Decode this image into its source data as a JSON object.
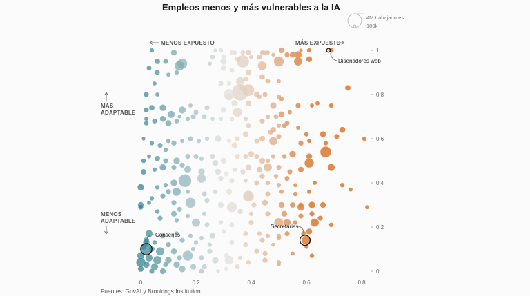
{
  "chart_data": {
    "type": "scatter",
    "title": "Empleos menos y más vulnerables a la IA",
    "x_axis": {
      "range": [
        0,
        0.8
      ],
      "ticks": [
        0,
        0.2,
        0.4,
        0.6,
        0.8
      ],
      "tick_labels": [
        "0",
        "0.2",
        "0.4",
        "0.6",
        "0.8"
      ]
    },
    "y_axis": {
      "range": [
        0,
        1
      ],
      "ticks": [
        0,
        0.2,
        0.4,
        0.6,
        0.8,
        1
      ],
      "tick_labels": [
        "0",
        "0.2",
        "0.4",
        "0.6",
        "0.8",
        "1"
      ]
    },
    "x_notes": {
      "left": "MENOS EXPUESTO",
      "right": "MÁS EXPUESTO"
    },
    "y_notes": {
      "top_line1": "MÁS",
      "top_line2": "ADAPTABLE",
      "bottom_line1": "MENOS",
      "bottom_line2": "ADAPTABLE"
    },
    "size_legend": [
      {
        "label": "4M trabajadores",
        "workers": 4000000
      },
      {
        "label": "100k",
        "workers": 100000
      }
    ],
    "annotations": [
      {
        "label": "Diseñadores web",
        "x": 0.68,
        "y": 1.0
      },
      {
        "label": "Secretarias",
        "x": 0.595,
        "y": 0.14
      },
      {
        "label": "Conserjes",
        "x": 0.02,
        "y": 0.1
      }
    ],
    "colors": {
      "low_exposure": "#2f7f8c",
      "mid": "#e2e2df",
      "high_exposure": "#d9772e"
    },
    "source": "Fuentes: GovAI y Brookings Institution",
    "points": [
      [
        0.69,
        1.0,
        15
      ],
      [
        0.61,
        1.0,
        12
      ],
      [
        0.58,
        1.0,
        8
      ],
      [
        0.51,
        1.0,
        20
      ],
      [
        0.46,
        0.99,
        10
      ],
      [
        0.45,
        0.99,
        9
      ],
      [
        0.44,
        0.99,
        12
      ],
      [
        0.39,
        0.99,
        15
      ],
      [
        0.37,
        0.99,
        12
      ],
      [
        0.34,
        0.99,
        10
      ],
      [
        0.33,
        0.99,
        12
      ],
      [
        0.29,
        1.0,
        13
      ],
      [
        0.27,
        1.0,
        9
      ],
      [
        0.57,
        0.98,
        30
      ],
      [
        0.55,
        0.98,
        20
      ],
      [
        0.53,
        0.98,
        15
      ],
      [
        0.48,
        0.98,
        9
      ],
      [
        0.43,
        0.97,
        15
      ],
      [
        0.4,
        0.97,
        10
      ],
      [
        0.35,
        0.96,
        20
      ],
      [
        0.3,
        0.97,
        15
      ],
      [
        0.26,
        0.97,
        13
      ],
      [
        0.12,
        0.99,
        20
      ],
      [
        0.04,
        1.0,
        12
      ],
      [
        0.61,
        0.96,
        20
      ],
      [
        0.57,
        0.95,
        40
      ],
      [
        0.5,
        0.95,
        60
      ],
      [
        0.44,
        0.93,
        45
      ],
      [
        0.37,
        0.95,
        90
      ],
      [
        0.3,
        0.95,
        25
      ],
      [
        0.25,
        0.94,
        10
      ],
      [
        0.3,
        0.92,
        20
      ],
      [
        0.33,
        0.91,
        15
      ],
      [
        0.15,
        0.94,
        60
      ],
      [
        0.14,
        0.93,
        55
      ],
      [
        0.09,
        0.95,
        15
      ],
      [
        0.06,
        0.95,
        18
      ],
      [
        0.03,
        0.92,
        14
      ],
      [
        0.13,
        0.9,
        12
      ],
      [
        0.1,
        0.89,
        10
      ],
      [
        0.06,
        0.9,
        15
      ],
      [
        0.39,
        0.9,
        20
      ],
      [
        0.38,
        0.87,
        15
      ],
      [
        0.36,
        0.86,
        40
      ],
      [
        0.44,
        0.88,
        18
      ],
      [
        0.46,
        0.86,
        15
      ],
      [
        0.5,
        0.86,
        10
      ],
      [
        0.32,
        0.85,
        12
      ],
      [
        0.29,
        0.85,
        15
      ],
      [
        0.37,
        0.83,
        25
      ],
      [
        0.39,
        0.82,
        80
      ],
      [
        0.36,
        0.81,
        160
      ],
      [
        0.32,
        0.8,
        70
      ],
      [
        0.32,
        0.79,
        30
      ],
      [
        0.34,
        0.76,
        25
      ],
      [
        0.42,
        0.8,
        20
      ],
      [
        0.45,
        0.8,
        15
      ],
      [
        0.43,
        0.79,
        12
      ],
      [
        0.5,
        0.79,
        12
      ],
      [
        0.51,
        0.78,
        12
      ],
      [
        0.57,
        0.75,
        15
      ],
      [
        0.48,
        0.75,
        25
      ],
      [
        0.39,
        0.76,
        20
      ],
      [
        0.35,
        0.72,
        50
      ],
      [
        0.3,
        0.73,
        20
      ],
      [
        0.24,
        0.74,
        15
      ],
      [
        0.2,
        0.72,
        15
      ],
      [
        0.18,
        0.75,
        10
      ],
      [
        0.15,
        0.73,
        30
      ],
      [
        0.11,
        0.71,
        30
      ],
      [
        0.08,
        0.74,
        25
      ],
      [
        0.04,
        0.74,
        18
      ],
      [
        0.02,
        0.73,
        15
      ],
      [
        0.05,
        0.85,
        10
      ],
      [
        0.02,
        0.8,
        15
      ],
      [
        0.06,
        0.8,
        10
      ],
      [
        0.62,
        0.75,
        10
      ],
      [
        0.64,
        0.76,
        10
      ],
      [
        0.69,
        0.75,
        12
      ],
      [
        0.75,
        0.83,
        18
      ],
      [
        0.54,
        0.72,
        10
      ],
      [
        0.51,
        0.71,
        20
      ],
      [
        0.49,
        0.7,
        14
      ],
      [
        0.46,
        0.7,
        12
      ],
      [
        0.44,
        0.68,
        15
      ],
      [
        0.39,
        0.66,
        15
      ],
      [
        0.38,
        0.69,
        12
      ],
      [
        0.33,
        0.69,
        12
      ],
      [
        0.29,
        0.69,
        12
      ],
      [
        0.26,
        0.69,
        10
      ],
      [
        0.23,
        0.7,
        15
      ],
      [
        0.19,
        0.7,
        15
      ],
      [
        0.17,
        0.69,
        12
      ],
      [
        0.14,
        0.7,
        8
      ],
      [
        0.13,
        0.68,
        14
      ],
      [
        0.1,
        0.67,
        22
      ],
      [
        0.08,
        0.69,
        20
      ],
      [
        0.05,
        0.68,
        15
      ],
      [
        0.02,
        0.67,
        12
      ],
      [
        0.02,
        0.69,
        10
      ],
      [
        0.53,
        0.67,
        14
      ],
      [
        0.52,
        0.66,
        15
      ],
      [
        0.5,
        0.66,
        12
      ],
      [
        0.48,
        0.64,
        20
      ],
      [
        0.47,
        0.63,
        15
      ],
      [
        0.57,
        0.65,
        10
      ],
      [
        0.6,
        0.62,
        12
      ],
      [
        0.66,
        0.62,
        20
      ],
      [
        0.73,
        0.64,
        22
      ],
      [
        0.71,
        0.61,
        15
      ],
      [
        0.81,
        0.6,
        12
      ],
      [
        0.67,
        0.58,
        12
      ],
      [
        0.61,
        0.59,
        10
      ],
      [
        0.58,
        0.58,
        15
      ],
      [
        0.5,
        0.61,
        15
      ],
      [
        0.48,
        0.59,
        40
      ],
      [
        0.44,
        0.6,
        20
      ],
      [
        0.42,
        0.59,
        15
      ],
      [
        0.38,
        0.62,
        20
      ],
      [
        0.35,
        0.6,
        15
      ],
      [
        0.34,
        0.57,
        22
      ],
      [
        0.32,
        0.59,
        12
      ],
      [
        0.28,
        0.6,
        25
      ],
      [
        0.24,
        0.6,
        12
      ],
      [
        0.21,
        0.59,
        12
      ],
      [
        0.18,
        0.6,
        15
      ],
      [
        0.15,
        0.59,
        10
      ],
      [
        0.12,
        0.58,
        15
      ],
      [
        0.1,
        0.59,
        12
      ],
      [
        0.07,
        0.57,
        15
      ],
      [
        0.04,
        0.58,
        12
      ],
      [
        0.01,
        0.6,
        8
      ],
      [
        0.67,
        0.54,
        70
      ],
      [
        0.61,
        0.52,
        20
      ],
      [
        0.55,
        0.53,
        25
      ],
      [
        0.52,
        0.52,
        12
      ],
      [
        0.48,
        0.52,
        12
      ],
      [
        0.46,
        0.5,
        12
      ],
      [
        0.44,
        0.5,
        20
      ],
      [
        0.42,
        0.52,
        15
      ],
      [
        0.4,
        0.53,
        20
      ],
      [
        0.38,
        0.52,
        15
      ],
      [
        0.35,
        0.52,
        15
      ],
      [
        0.3,
        0.5,
        20
      ],
      [
        0.27,
        0.49,
        20
      ],
      [
        0.26,
        0.52,
        15
      ],
      [
        0.22,
        0.51,
        12
      ],
      [
        0.2,
        0.52,
        15
      ],
      [
        0.17,
        0.52,
        15
      ],
      [
        0.13,
        0.5,
        25
      ],
      [
        0.09,
        0.5,
        15
      ],
      [
        0.06,
        0.51,
        18
      ],
      [
        0.03,
        0.52,
        10
      ],
      [
        0.01,
        0.5,
        12
      ],
      [
        0.09,
        0.55,
        12
      ],
      [
        0.61,
        0.49,
        50
      ],
      [
        0.69,
        0.47,
        30
      ],
      [
        0.58,
        0.46,
        20
      ],
      [
        0.54,
        0.45,
        15
      ],
      [
        0.5,
        0.47,
        15
      ],
      [
        0.46,
        0.47,
        40
      ],
      [
        0.43,
        0.46,
        20
      ],
      [
        0.39,
        0.47,
        20
      ],
      [
        0.37,
        0.45,
        15
      ],
      [
        0.34,
        0.46,
        12
      ],
      [
        0.31,
        0.44,
        15
      ],
      [
        0.28,
        0.45,
        20
      ],
      [
        0.22,
        0.45,
        25
      ],
      [
        0.17,
        0.46,
        30
      ],
      [
        0.15,
        0.48,
        15
      ],
      [
        0.12,
        0.47,
        15
      ],
      [
        0.08,
        0.47,
        25
      ],
      [
        0.05,
        0.46,
        12
      ],
      [
        0.01,
        0.45,
        18
      ],
      [
        0.44,
        0.43,
        15
      ],
      [
        0.49,
        0.43,
        12
      ],
      [
        0.53,
        0.42,
        15
      ],
      [
        0.16,
        0.41,
        95
      ],
      [
        0.22,
        0.42,
        45
      ],
      [
        0.29,
        0.42,
        15
      ],
      [
        0.33,
        0.41,
        15
      ],
      [
        0.38,
        0.41,
        10
      ],
      [
        0.42,
        0.4,
        15
      ],
      [
        0.46,
        0.4,
        12
      ],
      [
        0.5,
        0.39,
        12
      ],
      [
        0.56,
        0.39,
        10
      ],
      [
        0.63,
        0.4,
        10
      ],
      [
        0.73,
        0.39,
        12
      ],
      [
        0.12,
        0.4,
        25
      ],
      [
        0.09,
        0.39,
        12
      ],
      [
        0.06,
        0.38,
        12
      ],
      [
        0.0,
        0.38,
        25
      ],
      [
        0.76,
        0.37,
        10
      ],
      [
        0.1,
        0.36,
        15
      ],
      [
        0.17,
        0.36,
        10
      ],
      [
        0.23,
        0.35,
        15
      ],
      [
        0.27,
        0.36,
        12
      ],
      [
        0.32,
        0.36,
        20
      ],
      [
        0.39,
        0.34,
        70
      ],
      [
        0.46,
        0.35,
        15
      ],
      [
        0.51,
        0.36,
        10
      ],
      [
        0.56,
        0.35,
        12
      ],
      [
        0.61,
        0.36,
        10
      ],
      [
        0.13,
        0.36,
        40
      ],
      [
        0.08,
        0.34,
        15
      ],
      [
        0.04,
        0.33,
        12
      ],
      [
        0.03,
        0.31,
        10
      ],
      [
        0.12,
        0.31,
        15
      ],
      [
        0.18,
        0.31,
        60
      ],
      [
        0.24,
        0.32,
        15
      ],
      [
        0.29,
        0.3,
        20
      ],
      [
        0.33,
        0.29,
        60
      ],
      [
        0.41,
        0.3,
        15
      ],
      [
        0.45,
        0.31,
        20
      ],
      [
        0.51,
        0.3,
        20
      ],
      [
        0.55,
        0.3,
        18
      ],
      [
        0.58,
        0.3,
        15
      ],
      [
        0.58,
        0.29,
        30
      ],
      [
        0.62,
        0.3,
        25
      ],
      [
        0.66,
        0.3,
        20
      ],
      [
        0.82,
        0.29,
        10
      ],
      [
        0.0,
        0.3,
        20
      ],
      [
        0.0,
        0.29,
        15
      ],
      [
        0.14,
        0.28,
        15
      ],
      [
        0.06,
        0.27,
        12
      ],
      [
        0.12,
        0.26,
        20
      ],
      [
        0.17,
        0.25,
        12
      ],
      [
        0.23,
        0.26,
        12
      ],
      [
        0.36,
        0.27,
        15
      ],
      [
        0.4,
        0.26,
        12
      ],
      [
        0.46,
        0.26,
        15
      ],
      [
        0.52,
        0.26,
        20
      ],
      [
        0.58,
        0.25,
        15
      ],
      [
        0.62,
        0.26,
        15
      ],
      [
        0.65,
        0.24,
        15
      ],
      [
        0.07,
        0.24,
        15
      ],
      [
        0.13,
        0.23,
        12
      ],
      [
        0.2,
        0.22,
        40
      ],
      [
        0.24,
        0.21,
        15
      ],
      [
        0.29,
        0.22,
        12
      ],
      [
        0.33,
        0.21,
        15
      ],
      [
        0.4,
        0.22,
        15
      ],
      [
        0.5,
        0.22,
        50
      ],
      [
        0.53,
        0.22,
        30
      ],
      [
        0.56,
        0.22,
        12
      ],
      [
        0.63,
        0.22,
        40
      ],
      [
        0.69,
        0.21,
        12
      ],
      [
        0.03,
        0.17,
        30
      ],
      [
        0.08,
        0.16,
        15
      ],
      [
        0.13,
        0.17,
        12
      ],
      [
        0.18,
        0.16,
        12
      ],
      [
        0.22,
        0.15,
        12
      ],
      [
        0.26,
        0.16,
        20
      ],
      [
        0.3,
        0.18,
        12
      ],
      [
        0.38,
        0.17,
        15
      ],
      [
        0.43,
        0.17,
        12
      ],
      [
        0.46,
        0.16,
        12
      ],
      [
        0.5,
        0.16,
        12
      ],
      [
        0.53,
        0.17,
        15
      ],
      [
        0.59,
        0.17,
        15
      ],
      [
        0.61,
        0.18,
        20
      ],
      [
        0.02,
        0.14,
        20
      ],
      [
        0.02,
        0.13,
        25
      ],
      [
        0.05,
        0.13,
        12
      ],
      [
        0.1,
        0.12,
        15
      ],
      [
        0.15,
        0.14,
        15
      ],
      [
        0.2,
        0.13,
        12
      ],
      [
        0.25,
        0.12,
        12
      ],
      [
        0.33,
        0.13,
        15
      ],
      [
        0.38,
        0.12,
        15
      ],
      [
        0.44,
        0.14,
        15
      ],
      [
        0.48,
        0.12,
        10
      ],
      [
        0.5,
        0.15,
        12
      ],
      [
        0.6,
        0.14,
        50
      ],
      [
        0.6,
        0.11,
        10
      ],
      [
        0.01,
        0.11,
        20
      ],
      [
        0.04,
        0.1,
        18
      ],
      [
        0.02,
        0.1,
        70
      ],
      [
        0.07,
        0.09,
        40
      ],
      [
        0.12,
        0.09,
        20
      ],
      [
        0.19,
        0.1,
        12
      ],
      [
        0.25,
        0.09,
        15
      ],
      [
        0.31,
        0.07,
        15
      ],
      [
        0.36,
        0.06,
        12
      ],
      [
        0.42,
        0.09,
        15
      ],
      [
        0.45,
        0.08,
        15
      ],
      [
        0.55,
        0.08,
        10
      ],
      [
        0.62,
        0.07,
        12
      ],
      [
        0.0,
        0.07,
        30
      ],
      [
        0.03,
        0.06,
        30
      ],
      [
        0.06,
        0.05,
        40
      ],
      [
        0.1,
        0.05,
        25
      ],
      [
        0.14,
        0.06,
        15
      ],
      [
        0.17,
        0.07,
        60
      ],
      [
        0.22,
        0.06,
        15
      ],
      [
        0.27,
        0.05,
        25
      ],
      [
        0.32,
        0.05,
        45
      ],
      [
        0.39,
        0.04,
        12
      ],
      [
        0.45,
        0.05,
        15
      ],
      [
        0.5,
        0.04,
        12
      ],
      [
        0.0,
        0.04,
        50
      ],
      [
        0.02,
        0.03,
        25
      ],
      [
        0.05,
        0.02,
        30
      ],
      [
        0.09,
        0.03,
        15
      ],
      [
        0.13,
        0.03,
        25
      ],
      [
        0.19,
        0.02,
        20
      ],
      [
        0.23,
        0.02,
        15
      ],
      [
        0.31,
        0.01,
        12
      ],
      [
        0.35,
        0.02,
        15
      ],
      [
        0.0,
        0.01,
        20
      ],
      [
        0.04,
        0.0,
        15
      ],
      [
        0.08,
        0.0,
        20
      ],
      [
        0.15,
        0.01,
        25
      ],
      [
        0.22,
        0.0,
        15
      ],
      [
        0.5,
        0.03,
        8
      ],
      [
        0.28,
        0.0,
        8
      ]
    ]
  }
}
